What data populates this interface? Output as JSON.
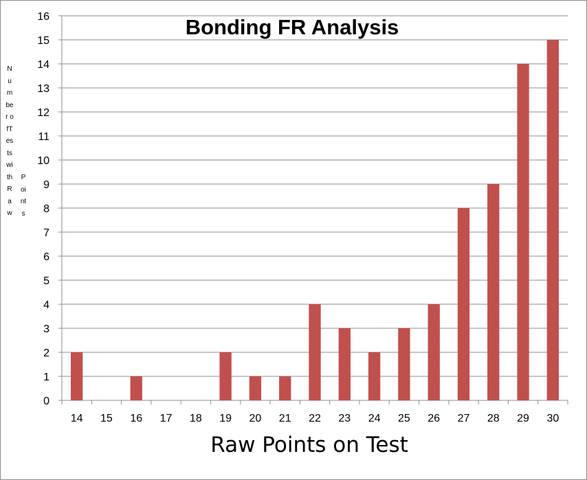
{
  "chart_data": {
    "type": "bar",
    "title": "Bonding FR Analysis",
    "xlabel": "Raw Points on Test",
    "ylabel": "Number of Tests with Raw Points",
    "ylabel_vertical": {
      "col1": "Number ofTests with Raw",
      "col2": "Points"
    },
    "categories": [
      "14",
      "15",
      "16",
      "17",
      "18",
      "19",
      "20",
      "21",
      "22",
      "23",
      "24",
      "25",
      "26",
      "27",
      "28",
      "29",
      "30"
    ],
    "values": [
      2,
      0,
      1,
      0,
      0,
      2,
      1,
      1,
      4,
      3,
      2,
      3,
      4,
      8,
      9,
      14,
      15
    ],
    "ylim": [
      0,
      16
    ],
    "yticks": [
      0,
      1,
      2,
      3,
      4,
      5,
      6,
      7,
      8,
      9,
      10,
      11,
      12,
      13,
      14,
      15,
      16
    ],
    "grid": true,
    "legend": "none",
    "bar_color": "#c0504d"
  }
}
